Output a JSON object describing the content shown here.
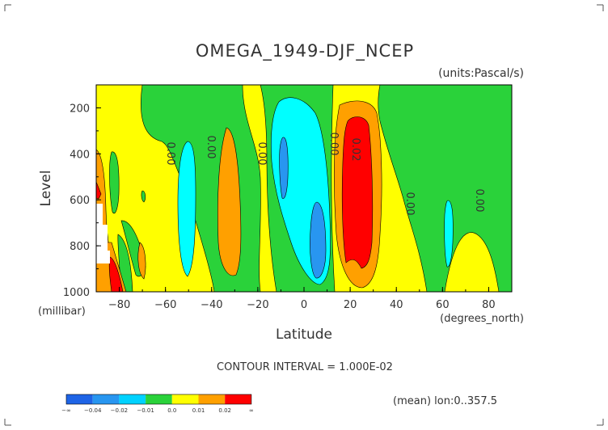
{
  "chart_data": {
    "type": "heatmap",
    "title": "OMEGA_1949-DJF_NCEP",
    "units": "(units:Pascal/s)",
    "xlabel": "Latitude",
    "xunits": "(degrees_north)",
    "ylabel": "Level",
    "yunits": "(millibar)",
    "xlim": [
      -90,
      90
    ],
    "ylim": [
      1000,
      100
    ],
    "x_ticks": [
      -80,
      -60,
      -40,
      -20,
      0,
      20,
      40,
      60,
      80
    ],
    "y_ticks": [
      200,
      400,
      600,
      800,
      1000
    ],
    "contour_interval_text": "CONTOUR INTERVAL = 1.000E-02",
    "mean_note": "(mean) lon:0..357.5",
    "contour_labels": [
      {
        "text": "0.00",
        "x": -60,
        "y": 400
      },
      {
        "text": "0.00",
        "x": -42,
        "y": 400
      },
      {
        "text": "0.00",
        "x": -19,
        "y": 460
      },
      {
        "text": "0.00",
        "x": 13,
        "y": 400
      },
      {
        "text": "0.02",
        "x": 21,
        "y": 420
      },
      {
        "text": "0.00",
        "x": 44,
        "y": 640
      },
      {
        "text": "0.00",
        "x": 75,
        "y": 620
      }
    ],
    "levels": [
      {
        "label": "-∞",
        "color": "#1e64e6"
      },
      {
        "label": "-0.04",
        "color": "#2896f0"
      },
      {
        "label": "-0.02",
        "color": "#00d2ff"
      },
      {
        "label": "-0.01",
        "color": "#2ad23a"
      },
      {
        "label": "0.0",
        "color": "#ffff00"
      },
      {
        "label": "0.01",
        "color": "#ffa000"
      },
      {
        "label": "0.02",
        "color": "#ff0000"
      },
      {
        "label": "∞",
        "color": ""
      }
    ],
    "colors": {
      "red": "#ff0000",
      "orange": "#ffa000",
      "yellow": "#ffff00",
      "green": "#2ad23a",
      "cyan": "#00ffff",
      "blue": "#2896f0",
      "darkblue": "#1e64e6"
    }
  }
}
